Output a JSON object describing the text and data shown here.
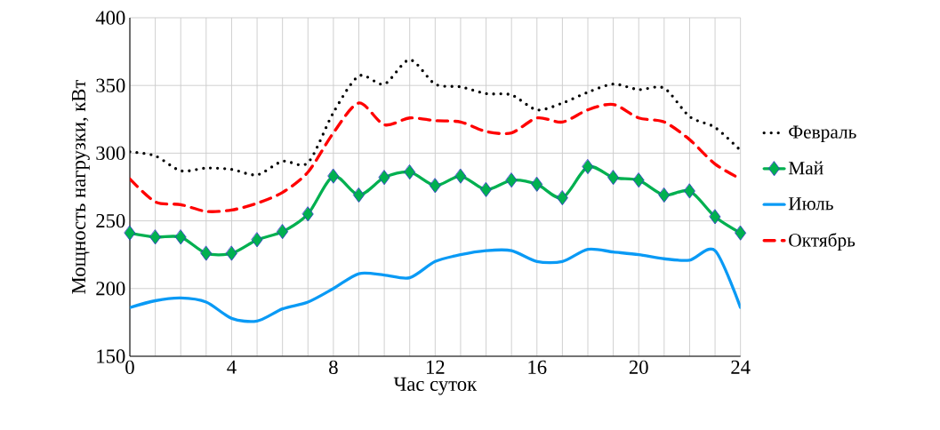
{
  "chart_data": {
    "type": "line",
    "xlabel": "Час суток",
    "ylabel": "Мощность нагрузки, кВт",
    "x": [
      0,
      1,
      2,
      3,
      4,
      5,
      6,
      7,
      8,
      9,
      10,
      11,
      12,
      13,
      14,
      15,
      16,
      17,
      18,
      19,
      20,
      21,
      22,
      23,
      24
    ],
    "xlim": [
      0,
      24
    ],
    "xticks": [
      0,
      4,
      8,
      12,
      16,
      20,
      24
    ],
    "ylim": [
      150,
      400
    ],
    "yticks": [
      150,
      200,
      250,
      300,
      350,
      400
    ],
    "grid": true,
    "legend": "right",
    "series": [
      {
        "name": "Февраль",
        "color": "#000000",
        "line_style": "dotted",
        "marker": "none",
        "values": [
          301,
          298,
          287,
          289,
          288,
          284,
          294,
          293,
          330,
          357,
          351,
          369,
          351,
          349,
          344,
          343,
          332,
          337,
          345,
          351,
          347,
          348,
          327,
          319,
          302
        ]
      },
      {
        "name": "Май",
        "color": "#00b050",
        "line_style": "solid",
        "marker": "diamond",
        "values": [
          241,
          238,
          238,
          226,
          226,
          236,
          242,
          255,
          283,
          269,
          282,
          286,
          276,
          283,
          273,
          280,
          277,
          267,
          290,
          282,
          280,
          269,
          272,
          253,
          241
        ]
      },
      {
        "name": "Июль",
        "color": "#0a9af5",
        "line_style": "solid",
        "marker": "none",
        "values": [
          186,
          191,
          193,
          190,
          178,
          176,
          185,
          190,
          200,
          211,
          210,
          208,
          220,
          225,
          228,
          228,
          220,
          220,
          229,
          227,
          225,
          222,
          221,
          228,
          186
        ]
      },
      {
        "name": "Октябрь",
        "color": "#ff0000",
        "line_style": "dashed",
        "marker": "none",
        "values": [
          281,
          264,
          262,
          257,
          258,
          263,
          271,
          286,
          315,
          337,
          321,
          326,
          324,
          323,
          316,
          315,
          326,
          323,
          332,
          336,
          326,
          323,
          310,
          292,
          281
        ]
      }
    ]
  }
}
